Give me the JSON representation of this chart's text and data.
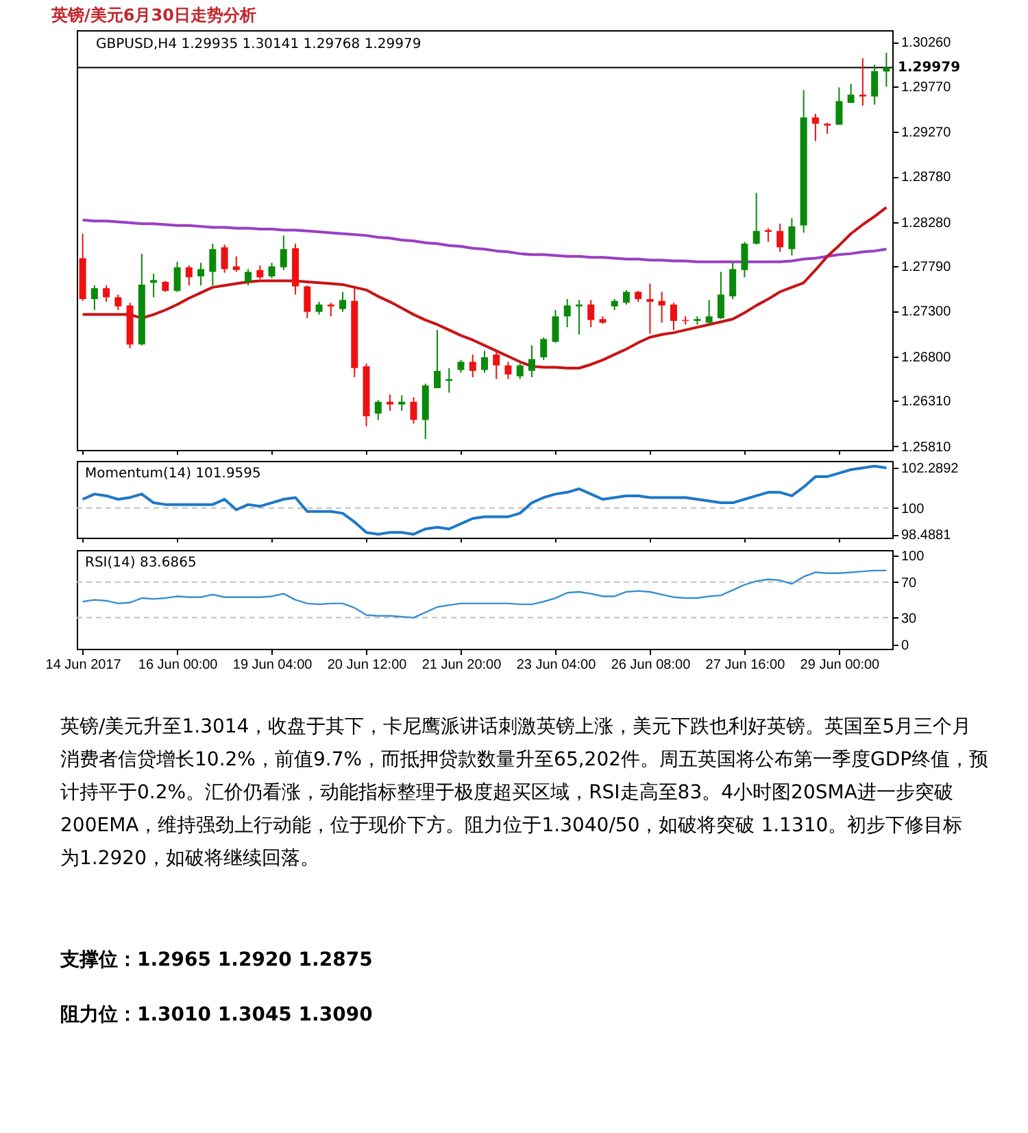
{
  "chart_data": [
    {
      "type": "candlestick",
      "title": "英镑/美元6月30日走势分析",
      "annotations": [
        "GBPUSD,H4  1.29935 1.30141 1.29768 1.29979",
        "英镑/美元升至1.3014，收盘于其下，卡尼鹰派讲话刺激英镑上涨，美元下跌也利好英镑。英国至5月三个月消费者信贷增长10.2%，前值9.7%，而抵押贷款数量升至65,202件。周五英国将公布第一季度GDP终值，预计持平于0.2%。汇价仍看涨，动能指标整理于极度超买区域，RSI走高至83。4小时图20SMA进一步突破200EMA，维持强劲上行动能，位于现价下方。阻力位于1.3040/50，如破将突破 1.1310。初步下修目标为1.2920，如破将继续回落。",
        "支撑位：1.2965 1.2920 1.2875",
        "阻力位：1.3010 1.3045 1.3090"
      ],
      "ohlc": [
        [
          1.2788,
          1.2815,
          1.2741,
          1.2743
        ],
        [
          1.2743,
          1.2758,
          1.2731,
          1.2755
        ],
        [
          1.2755,
          1.2758,
          1.274,
          1.2745
        ],
        [
          1.2745,
          1.2748,
          1.2731,
          1.2735
        ],
        [
          1.2736,
          1.2739,
          1.2689,
          1.2693
        ],
        [
          1.2693,
          1.2793,
          1.2692,
          1.2759
        ],
        [
          1.2761,
          1.2771,
          1.2745,
          1.2764
        ],
        [
          1.2762,
          1.2763,
          1.2751,
          1.2752
        ],
        [
          1.2752,
          1.2784,
          1.2751,
          1.2778
        ],
        [
          1.2778,
          1.278,
          1.2758,
          1.2767
        ],
        [
          1.2768,
          1.2783,
          1.2758,
          1.2776
        ],
        [
          1.2773,
          1.2804,
          1.2758,
          1.2798
        ],
        [
          1.28,
          1.2803,
          1.2772,
          1.2776
        ],
        [
          1.2779,
          1.279,
          1.2773,
          1.2775
        ],
        [
          1.2762,
          1.2776,
          1.2758,
          1.2773
        ],
        [
          1.2775,
          1.278,
          1.2765,
          1.2767
        ],
        [
          1.2768,
          1.2783,
          1.2766,
          1.2779
        ],
        [
          1.2778,
          1.2813,
          1.2775,
          1.2798
        ],
        [
          1.2799,
          1.2804,
          1.2748,
          1.2757
        ],
        [
          1.2757,
          1.2758,
          1.2722,
          1.2729
        ],
        [
          1.2729,
          1.274,
          1.2726,
          1.2737
        ],
        [
          1.2737,
          1.2739,
          1.2724,
          1.2735
        ],
        [
          1.2732,
          1.2751,
          1.2729,
          1.2742
        ],
        [
          1.2741,
          1.2756,
          1.2657,
          1.2667
        ],
        [
          1.2669,
          1.2672,
          1.2603,
          1.2614
        ],
        [
          1.2617,
          1.2632,
          1.261,
          1.263
        ],
        [
          1.263,
          1.2638,
          1.262,
          1.2627
        ],
        [
          1.2627,
          1.2637,
          1.262,
          1.263
        ],
        [
          1.263,
          1.2635,
          1.2606,
          1.261
        ],
        [
          1.261,
          1.265,
          1.2589,
          1.2648
        ],
        [
          1.2645,
          1.2709,
          1.2645,
          1.2664
        ],
        [
          1.2653,
          1.2667,
          1.264,
          1.2655
        ],
        [
          1.2665,
          1.2676,
          1.2662,
          1.2674
        ],
        [
          1.2674,
          1.2682,
          1.2657,
          1.2664
        ],
        [
          1.2665,
          1.2686,
          1.2662,
          1.2679
        ],
        [
          1.2682,
          1.2687,
          1.2655,
          1.267
        ],
        [
          1.267,
          1.2674,
          1.2655,
          1.266
        ],
        [
          1.2658,
          1.2672,
          1.2655,
          1.267
        ],
        [
          1.2664,
          1.2692,
          1.2657,
          1.2677
        ],
        [
          1.2679,
          1.2701,
          1.2676,
          1.2699
        ],
        [
          1.2696,
          1.2731,
          1.2695,
          1.2724
        ],
        [
          1.2724,
          1.2743,
          1.2712,
          1.2736
        ],
        [
          1.2735,
          1.2742,
          1.2704,
          1.2737
        ],
        [
          1.2737,
          1.2742,
          1.2712,
          1.272
        ],
        [
          1.2721,
          1.2724,
          1.2716,
          1.2717
        ],
        [
          1.2735,
          1.2743,
          1.2731,
          1.2741
        ],
        [
          1.2739,
          1.2753,
          1.2737,
          1.2751
        ],
        [
          1.2751,
          1.2752,
          1.274,
          1.2743
        ],
        [
          1.2743,
          1.276,
          1.2705,
          1.274
        ],
        [
          1.2741,
          1.2751,
          1.2717,
          1.2736
        ],
        [
          1.2737,
          1.2739,
          1.2709,
          1.2719
        ],
        [
          1.272,
          1.2724,
          1.2715,
          1.2719
        ],
        [
          1.2719,
          1.2724,
          1.2715,
          1.2721
        ],
        [
          1.2717,
          1.2742,
          1.2715,
          1.2724
        ],
        [
          1.2722,
          1.2773,
          1.2721,
          1.2748
        ],
        [
          1.2746,
          1.2783,
          1.2743,
          1.2776
        ],
        [
          1.2775,
          1.2806,
          1.2767,
          1.2804
        ],
        [
          1.2804,
          1.286,
          1.2803,
          1.2818
        ],
        [
          1.2819,
          1.2821,
          1.2806,
          1.2817
        ],
        [
          1.2818,
          1.2826,
          1.2795,
          1.28
        ],
        [
          1.2798,
          1.2832,
          1.2791,
          1.2823
        ],
        [
          1.2824,
          1.2973,
          1.2816,
          1.2943
        ],
        [
          1.2943,
          1.2947,
          1.2917,
          1.2936
        ],
        [
          1.2936,
          1.2937,
          1.2925,
          1.2934
        ],
        [
          1.2935,
          1.2976,
          1.2935,
          1.2961
        ],
        [
          1.2959,
          1.298,
          1.2959,
          1.2968
        ],
        [
          1.2968,
          1.3008,
          1.2956,
          1.2966
        ],
        [
          1.2966,
          1.3001,
          1.2957,
          1.2994
        ],
        [
          1.29935,
          1.30141,
          1.29768,
          1.29979
        ]
      ],
      "series": [
        {
          "type": "line",
          "color": "#9b3fc4",
          "values": [
            1.283,
            1.2829,
            1.2829,
            1.2828,
            1.2827,
            1.2826,
            1.2826,
            1.2825,
            1.2824,
            1.2824,
            1.2823,
            1.2822,
            1.2822,
            1.2821,
            1.2821,
            1.282,
            1.282,
            1.2819,
            1.2819,
            1.2818,
            1.2817,
            1.2816,
            1.2815,
            1.2814,
            1.2813,
            1.2811,
            1.281,
            1.2808,
            1.2807,
            1.2805,
            1.2804,
            1.2802,
            1.2801,
            1.2799,
            1.2798,
            1.2796,
            1.2795,
            1.2793,
            1.2792,
            1.2792,
            1.2791,
            1.279,
            1.279,
            1.2789,
            1.2789,
            1.2788,
            1.2787,
            1.2787,
            1.2786,
            1.2786,
            1.2785,
            1.2785,
            1.2784,
            1.2784,
            1.2784,
            1.2784,
            1.2784,
            1.2784,
            1.2784,
            1.2784,
            1.2785,
            1.2787,
            1.2788,
            1.279,
            1.2792,
            1.2793,
            1.2795,
            1.2796,
            1.2798
          ]
        },
        {
          "type": "line",
          "color": "#c81414",
          "values": [
            1.2726,
            1.2726,
            1.2726,
            1.2726,
            1.2726,
            1.2722,
            1.2726,
            1.2731,
            1.2737,
            1.2744,
            1.275,
            1.2756,
            1.2758,
            1.276,
            1.2762,
            1.2763,
            1.2763,
            1.2763,
            1.2763,
            1.2762,
            1.2761,
            1.276,
            1.2759,
            1.2756,
            1.2753,
            1.2746,
            1.274,
            1.2733,
            1.2726,
            1.272,
            1.2715,
            1.2709,
            1.2703,
            1.2698,
            1.2692,
            1.2686,
            1.268,
            1.2674,
            1.2669,
            1.2668,
            1.2668,
            1.2667,
            1.2667,
            1.2671,
            1.2676,
            1.2682,
            1.2688,
            1.2695,
            1.2701,
            1.2704,
            1.2706,
            1.2709,
            1.2712,
            1.2715,
            1.2718,
            1.2721,
            1.2728,
            1.2736,
            1.2743,
            1.2751,
            1.2756,
            1.2761,
            1.2775,
            1.279,
            1.2802,
            1.2815,
            1.2825,
            1.2834,
            1.2844
          ]
        }
      ],
      "ylim": [
        1.2577,
        1.3039
      ],
      "yticks": [
        {
          "value": 1.3026,
          "label": "1.30260"
        },
        {
          "value": 1.2977,
          "label": "1.29770"
        },
        {
          "value": 1.2927,
          "label": "1.29270"
        },
        {
          "value": 1.2878,
          "label": "1.28780"
        },
        {
          "value": 1.2828,
          "label": "1.28280"
        },
        {
          "value": 1.2779,
          "label": "1.27790"
        },
        {
          "value": 1.273,
          "label": "1.27300"
        },
        {
          "value": 1.268,
          "label": "1.26800"
        },
        {
          "value": 1.2631,
          "label": "1.26310"
        },
        {
          "value": 1.2581,
          "label": "1.25810"
        }
      ],
      "ref_lines": [
        {
          "axis": "y",
          "value": 1.29979,
          "label": "1.29979",
          "color": "#000000"
        }
      ],
      "tick_labels": "y"
    },
    {
      "type": "line",
      "title": "Momentum(14) 101.9595",
      "series": [
        {
          "color": "#1f78c8",
          "values": [
            100.5,
            100.8,
            100.7,
            100.5,
            100.6,
            100.8,
            100.3,
            100.2,
            100.2,
            100.2,
            100.2,
            100.2,
            100.5,
            99.9,
            100.2,
            100.1,
            100.3,
            100.5,
            100.6,
            99.8,
            99.8,
            99.8,
            99.7,
            99.2,
            98.6,
            98.5,
            98.6,
            98.6,
            98.5,
            98.8,
            98.9,
            98.8,
            99.1,
            99.4,
            99.5,
            99.5,
            99.5,
            99.7,
            100.3,
            100.6,
            100.8,
            100.9,
            101.1,
            100.8,
            100.5,
            100.6,
            100.7,
            100.7,
            100.6,
            100.6,
            100.6,
            100.6,
            100.5,
            100.4,
            100.3,
            100.3,
            100.5,
            100.7,
            100.9,
            100.9,
            100.7,
            101.2,
            101.8,
            101.8,
            102.0,
            102.2,
            102.3,
            102.4,
            102.3
          ]
        }
      ],
      "ylim": [
        98.3,
        102.7
      ],
      "yticks": [
        102.2892,
        100,
        98.4881
      ],
      "ref_lines": [
        {
          "axis": "y",
          "value": 100,
          "color": "#c0c0c0",
          "line_style": "dashed"
        }
      ],
      "tick_labels": "y"
    },
    {
      "type": "line",
      "title": "RSI(14) 83.6865",
      "categories": [
        "14 Jun 2017",
        null,
        null,
        null,
        null,
        null,
        null,
        null,
        "16 Jun 00:00",
        null,
        null,
        null,
        null,
        null,
        null,
        null,
        "19 Jun 04:00",
        null,
        null,
        null,
        null,
        null,
        null,
        null,
        "20 Jun 12:00",
        null,
        null,
        null,
        null,
        null,
        null,
        null,
        "21 Jun 20:00",
        null,
        null,
        null,
        null,
        null,
        null,
        null,
        "23 Jun 04:00",
        null,
        null,
        null,
        null,
        null,
        null,
        null,
        "26 Jun 08:00",
        null,
        null,
        null,
        null,
        null,
        null,
        null,
        "27 Jun 16:00",
        null,
        null,
        null,
        null,
        null,
        null,
        null,
        "29 Jun 00:00",
        null,
        null,
        null,
        null
      ],
      "series": [
        {
          "color": "#3a8fd0",
          "values": [
            48,
            50,
            49,
            46,
            47,
            52,
            51,
            52,
            54,
            53,
            53,
            56,
            53,
            53,
            53,
            53,
            54,
            57,
            50,
            46,
            45,
            46,
            46,
            41,
            33,
            32,
            32,
            31,
            30,
            36,
            42,
            44,
            46,
            46,
            46,
            46,
            46,
            45,
            45,
            48,
            52,
            58,
            59,
            57,
            54,
            54,
            59,
            60,
            59,
            56,
            53,
            52,
            52,
            54,
            55,
            61,
            67,
            71,
            73,
            72,
            68,
            76,
            81,
            80,
            80,
            81,
            82,
            83,
            83
          ]
        }
      ],
      "ylim": [
        -5,
        106
      ],
      "yticks": [
        100,
        70,
        30,
        0
      ],
      "ref_lines": [
        {
          "axis": "y",
          "value": 70,
          "color": "#c0c0c0",
          "line_style": "dashed"
        },
        {
          "axis": "y",
          "value": 30,
          "color": "#c0c0c0",
          "line_style": "dashed"
        }
      ]
    }
  ]
}
